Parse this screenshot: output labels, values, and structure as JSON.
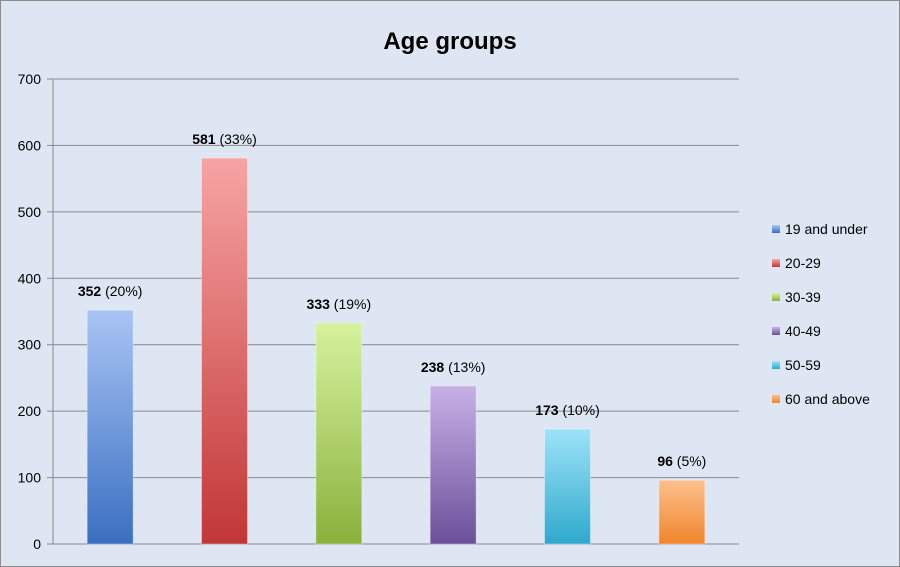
{
  "chart_data": {
    "type": "bar",
    "title": "Age groups",
    "xlabel": "",
    "ylabel": "",
    "ylim": [
      0,
      700
    ],
    "yticks": [
      0,
      100,
      200,
      300,
      400,
      500,
      600,
      700
    ],
    "grid": true,
    "legend_position": "right",
    "categories": [
      "19 and under",
      "20-29",
      "30-39",
      "40-49",
      "50-59",
      "60 and above"
    ],
    "values": [
      352,
      581,
      333,
      238,
      173,
      96
    ],
    "percent_labels": [
      "(20%)",
      "(33%)",
      "(19%)",
      "(13%)",
      "(10%)",
      "(5%)"
    ],
    "colors": [
      {
        "top": "#a9c4f5",
        "bottom": "#3a6fc1"
      },
      {
        "top": "#f7a4a4",
        "bottom": "#c23636"
      },
      {
        "top": "#d6f29e",
        "bottom": "#8bb13c"
      },
      {
        "top": "#c9b1e6",
        "bottom": "#6b4f9a"
      },
      {
        "top": "#9ee3f8",
        "bottom": "#2fa9cc"
      },
      {
        "top": "#fcc08d",
        "bottom": "#f1852b"
      }
    ]
  }
}
